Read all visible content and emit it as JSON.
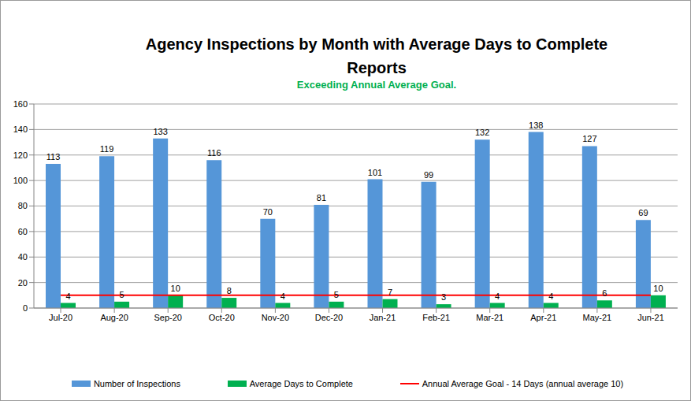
{
  "chart_data": {
    "type": "bar",
    "title": "Agency Inspections by Month with Average Days to Complete Reports",
    "subtitle": "Exceeding Annual Average Goal.",
    "categories": [
      "Jul-20",
      "Aug-20",
      "Sep-20",
      "Oct-20",
      "Nov-20",
      "Dec-20",
      "Jan-21",
      "Feb-21",
      "Mar-21",
      "Apr-21",
      "May-21",
      "Jun-21"
    ],
    "series": [
      {
        "name": "Number of Inspections",
        "type": "bar",
        "color": "#5596d8",
        "data_labels": true,
        "values": [
          113,
          119,
          133,
          116,
          70,
          81,
          101,
          99,
          132,
          138,
          127,
          69
        ]
      },
      {
        "name": "Average Days to Complete",
        "type": "bar",
        "color": "#00b050",
        "data_labels": true,
        "values": [
          4,
          5,
          10,
          8,
          4,
          5,
          7,
          3,
          4,
          4,
          6,
          10
        ]
      },
      {
        "name": "Annual Average Goal - 14 Days (annual average 10)",
        "type": "line",
        "color": "#ff0000",
        "data_labels": false,
        "values": [
          10,
          10,
          10,
          10,
          10,
          10,
          10,
          10,
          10,
          10,
          10,
          10
        ]
      }
    ],
    "ylim": [
      0,
      160
    ],
    "yticks": [
      0,
      20,
      40,
      60,
      80,
      100,
      120,
      140,
      160
    ],
    "grid": true,
    "legend": "bottom"
  }
}
